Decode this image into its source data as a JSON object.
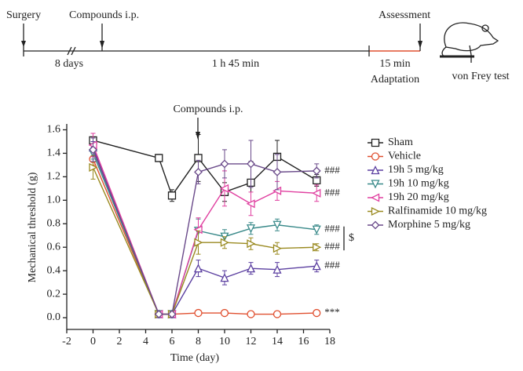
{
  "timeline": {
    "surgery": "Surgery",
    "compounds": "Compounds i.p.",
    "assessment": "Assessment",
    "interval1": "8 days",
    "interval2": "1 h 45 min",
    "interval3": "15 min",
    "interval3_note": "Adaptation",
    "test": "von Frey test"
  },
  "chart_data": {
    "type": "line",
    "annotation": "Compounds i.p.",
    "xlabel": "Time (day)",
    "ylabel": "Mechanical threshold (g)",
    "x": [
      0,
      5,
      6,
      8,
      10,
      12,
      14,
      17
    ],
    "xlim": [
      -2,
      18
    ],
    "xticks": [
      -2,
      0,
      2,
      4,
      6,
      8,
      10,
      12,
      14,
      16,
      18
    ],
    "ylim": [
      -0.1,
      1.65
    ],
    "yticks": [
      {
        "value": 0,
        "label": "0.0"
      },
      0.2,
      0.4,
      0.6,
      0.8,
      {
        "value": 1,
        "label": "1.0"
      },
      1.2,
      1.4,
      1.6
    ],
    "series": [
      {
        "name": "Sham",
        "color": "#222222",
        "marker": "square",
        "values": [
          1.51,
          1.36,
          1.04,
          1.36,
          1.07,
          1.15,
          1.37,
          1.17
        ],
        "errors": [
          0.03,
          0.03,
          0.05,
          0.2,
          0.08,
          0.18,
          0.14,
          0.05
        ]
      },
      {
        "name": "Vehicle",
        "color": "#e05030",
        "marker": "circle",
        "values": [
          1.35,
          0.03,
          0.03,
          0.04,
          0.04,
          0.03,
          0.03,
          0.04
        ],
        "errors": [
          0.05,
          0.01,
          0.01,
          0.01,
          0.01,
          0.01,
          0.01,
          0.01
        ]
      },
      {
        "name": "19h 5 mg/kg",
        "color": "#5b3fa0",
        "marker": "triangle-up",
        "values": [
          1.45,
          0.03,
          0.03,
          0.42,
          0.34,
          0.42,
          0.41,
          0.44
        ],
        "errors": [
          0.05,
          0.01,
          0.01,
          0.07,
          0.06,
          0.05,
          0.06,
          0.05
        ]
      },
      {
        "name": "19h 10 mg/kg",
        "color": "#3a8a8a",
        "marker": "triangle-down",
        "values": [
          1.4,
          0.03,
          0.03,
          0.74,
          0.69,
          0.76,
          0.79,
          0.75
        ],
        "errors": [
          0.05,
          0.01,
          0.01,
          0.1,
          0.06,
          0.05,
          0.05,
          0.04
        ]
      },
      {
        "name": "19h 20 mg/kg",
        "color": "#e040a0",
        "marker": "triangle-left",
        "values": [
          1.47,
          0.03,
          0.03,
          0.75,
          1.1,
          0.97,
          1.08,
          1.06
        ],
        "errors": [
          0.1,
          0.01,
          0.01,
          0.1,
          0.15,
          0.1,
          0.08,
          0.07
        ]
      },
      {
        "name": "Ralfinamide  10 mg/kg",
        "color": "#9a8a20",
        "marker": "triangle-right",
        "values": [
          1.28,
          0.03,
          0.03,
          0.64,
          0.64,
          0.63,
          0.59,
          0.6
        ],
        "errors": [
          0.1,
          0.01,
          0.01,
          0.1,
          0.05,
          0.05,
          0.05,
          0.03
        ]
      },
      {
        "name": "Morphine  5 mg/kg",
        "color": "#6a4a8a",
        "marker": "diamond",
        "values": [
          1.43,
          0.03,
          0.03,
          1.24,
          1.31,
          1.31,
          1.24,
          1.25
        ],
        "errors": [
          0.1,
          0.01,
          0.01,
          0.1,
          0.12,
          0.2,
          0.15,
          0.06
        ]
      }
    ],
    "significance": [
      "###",
      "###",
      "###",
      "###",
      "###",
      "***",
      "$"
    ]
  }
}
